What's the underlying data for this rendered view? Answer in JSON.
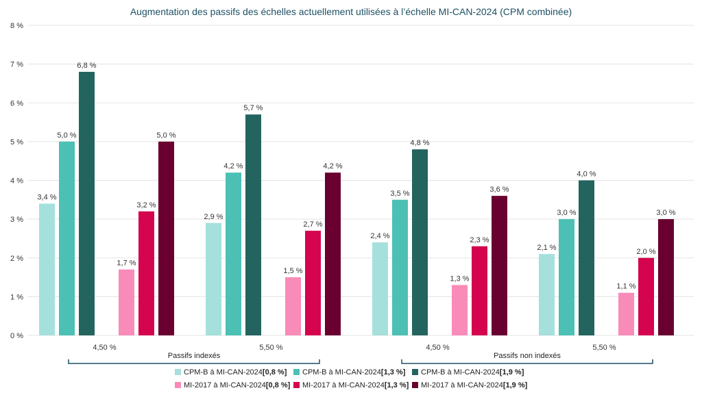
{
  "chart_data": {
    "type": "bar",
    "title": "Augmentation des passifs des échelles actuellement utilisées à l’échelle MI-CAN-2024 (CPM combinée)",
    "xlabel": "",
    "ylabel": "",
    "ylim": [
      0,
      8
    ],
    "y_ticks": [
      "0 %",
      "1 %",
      "2 %",
      "3 %",
      "4 %",
      "5 %",
      "6 %",
      "7 %",
      "8 %"
    ],
    "grid": true,
    "categories": [
      "4,50 %",
      "5,50 %",
      "4,50 %",
      "5,50 %"
    ],
    "groups": [
      {
        "label": "Passifs indexés",
        "categories": [
          0,
          1
        ]
      },
      {
        "label": "Passifs non indexés",
        "categories": [
          2,
          3
        ]
      }
    ],
    "series": [
      {
        "name": "CPM-B à MI-CAN-2024",
        "bracket": "[0,8 %]",
        "color": "#a5e0dc",
        "values": [
          3.4,
          2.9,
          2.4,
          2.1
        ],
        "labels": [
          "3,4 %",
          "2,9 %",
          "2,4 %",
          "2,1 %"
        ]
      },
      {
        "name": "CPM-B à MI-CAN-2024",
        "bracket": "[1,3 %]",
        "color": "#4cc0b5",
        "values": [
          5.0,
          4.2,
          3.5,
          3.0
        ],
        "labels": [
          "5,0 %",
          "4,2 %",
          "3,5 %",
          "3,0 %"
        ]
      },
      {
        "name": "CPM-B à MI-CAN-2024",
        "bracket": "[1,9 %]",
        "color": "#23645f",
        "values": [
          6.8,
          5.7,
          4.8,
          4.0
        ],
        "labels": [
          "6,8 %",
          "5,7 %",
          "4,8 %",
          "4,0 %"
        ]
      },
      {
        "name": "MI-2017 à MI-CAN-2024",
        "bracket": "[0,8 %]",
        "color": "#f98bb8",
        "values": [
          1.7,
          1.5,
          1.3,
          1.1
        ],
        "labels": [
          "1,7 %",
          "1,5 %",
          "1,3 %",
          "1,1 %"
        ]
      },
      {
        "name": "MI-2017 à MI-CAN-2024",
        "bracket": "[1,3 %]",
        "color": "#d4044f",
        "values": [
          3.2,
          2.7,
          2.3,
          2.0
        ],
        "labels": [
          "3,2 %",
          "2,7 %",
          "2,3 %",
          "2,0 %"
        ]
      },
      {
        "name": "MI-2017 à MI-CAN-2024",
        "bracket": "[1,9 %]",
        "color": "#690030",
        "values": [
          5.0,
          4.2,
          3.6,
          3.0
        ],
        "labels": [
          "5,0 %",
          "4,2 %",
          "3,6 %",
          "3,0 %"
        ]
      }
    ],
    "legend_position": "bottom",
    "colors": {
      "grid": "#e3e3e3",
      "bracket": "#1d4f63",
      "title": "#1d4f63"
    }
  }
}
